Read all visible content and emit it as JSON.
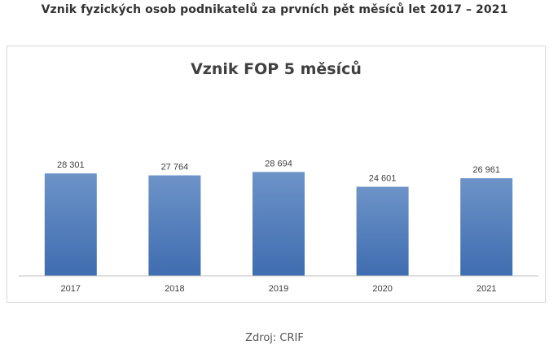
{
  "heading": "Vznik fyzických osob podnikatelů za prvních pět měsíců let 2017 – 2021",
  "source": "Zdroj: CRIF",
  "colors": {
    "bar_top": "#6d93c8",
    "bar_bottom": "#3f6db0",
    "axis": "#bfbfbf"
  },
  "chart_data": {
    "type": "bar",
    "title": "Vznik FOP 5 měsíců",
    "categories": [
      "2017",
      "2018",
      "2019",
      "2020",
      "2021"
    ],
    "values": [
      28301,
      27764,
      28694,
      24601,
      26961
    ],
    "value_labels": [
      "28 301",
      "27 764",
      "28 694",
      "24 601",
      "26 961"
    ],
    "xlabel": "",
    "ylabel": "",
    "ylim": [
      0,
      29000
    ],
    "grid": false,
    "legend": "none"
  }
}
